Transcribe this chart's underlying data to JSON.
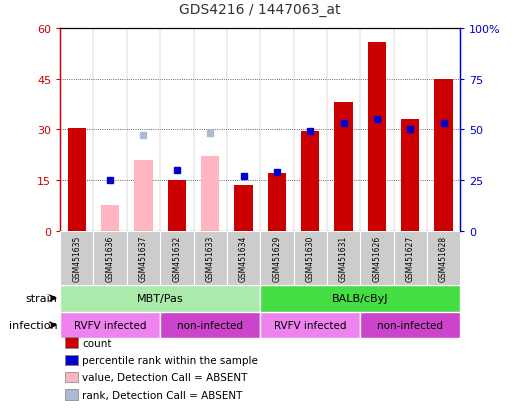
{
  "title": "GDS4216 / 1447063_at",
  "samples": [
    "GSM451635",
    "GSM451636",
    "GSM451637",
    "GSM451632",
    "GSM451633",
    "GSM451634",
    "GSM451629",
    "GSM451630",
    "GSM451631",
    "GSM451626",
    "GSM451627",
    "GSM451628"
  ],
  "count_values": [
    30.5,
    null,
    null,
    15.0,
    null,
    13.5,
    17.0,
    29.5,
    38.0,
    56.0,
    33.0,
    45.0
  ],
  "count_absent": [
    null,
    7.5,
    21.0,
    null,
    22.0,
    null,
    null,
    null,
    null,
    null,
    null,
    null
  ],
  "percentile_values": [
    null,
    25.0,
    null,
    30.0,
    null,
    27.0,
    29.0,
    49.0,
    53.0,
    55.0,
    50.0,
    53.0
  ],
  "percentile_absent": [
    null,
    null,
    47.0,
    null,
    48.0,
    null,
    null,
    null,
    null,
    null,
    null,
    null
  ],
  "strain_groups": [
    {
      "label": "MBT/Pas",
      "start": 0,
      "end": 6,
      "color": "#AAEAAA"
    },
    {
      "label": "BALB/cByJ",
      "start": 6,
      "end": 12,
      "color": "#44DD44"
    }
  ],
  "infection_groups": [
    {
      "label": "RVFV infected",
      "start": 0,
      "end": 3,
      "color": "#EE82EE"
    },
    {
      "label": "non-infected",
      "start": 3,
      "end": 6,
      "color": "#CC44CC"
    },
    {
      "label": "RVFV infected",
      "start": 6,
      "end": 9,
      "color": "#EE82EE"
    },
    {
      "label": "non-infected",
      "start": 9,
      "end": 12,
      "color": "#CC44CC"
    }
  ],
  "bar_width": 0.55,
  "ylim_left": [
    0,
    60
  ],
  "ylim_right": [
    0,
    100
  ],
  "yticks_left": [
    0,
    15,
    30,
    45,
    60
  ],
  "yticks_right": [
    0,
    25,
    50,
    75,
    100
  ],
  "ytick_labels_left": [
    "0",
    "15",
    "30",
    "45",
    "60"
  ],
  "ytick_labels_right": [
    "0",
    "25",
    "50",
    "75",
    "100%"
  ],
  "count_color": "#CC0000",
  "count_absent_color": "#FFB6C1",
  "percentile_color": "#0000CC",
  "percentile_absent_color": "#AABBD4",
  "bg_color": "#FFFFFF",
  "plot_bg": "#FFFFFF",
  "grid_color": "#333333",
  "legend_items": [
    {
      "label": "count",
      "color": "#CC0000"
    },
    {
      "label": "percentile rank within the sample",
      "color": "#0000CC"
    },
    {
      "label": "value, Detection Call = ABSENT",
      "color": "#FFB6C1"
    },
    {
      "label": "rank, Detection Call = ABSENT",
      "color": "#AABBD4"
    }
  ],
  "sample_cell_color": "#CCCCCC",
  "strain_label": "strain",
  "infection_label": "infection"
}
